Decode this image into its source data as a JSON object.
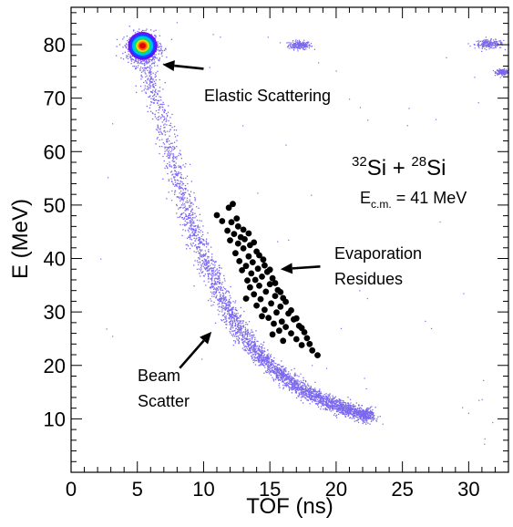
{
  "chart_data": {
    "type": "scatter",
    "xlabel": "TOF (ns)",
    "ylabel": "E (MeV)",
    "xlim": [
      0,
      33
    ],
    "ylim": [
      0,
      87
    ],
    "x_major_ticks": [
      0,
      5,
      10,
      15,
      20,
      25,
      30
    ],
    "y_major_ticks": [
      10,
      20,
      30,
      40,
      50,
      60,
      70,
      80
    ],
    "x_minor_step": 1,
    "y_minor_step": 2,
    "grid": false,
    "reaction": {
      "sup_a": "32",
      "element_a": "Si",
      "plus": " + ",
      "sup_b": "28",
      "element_b": "Si"
    },
    "energy_label": {
      "symbol": "E",
      "subscript": "c.m.",
      "value": " = 41 MeV"
    },
    "annotations": [
      {
        "id": "elastic",
        "text": "Elastic Scattering",
        "arrow_from": [
          10.0,
          75.5
        ],
        "arrow_to": [
          6.9,
          76.3
        ]
      },
      {
        "id": "evap",
        "lines": [
          "Evaporation",
          "Residues"
        ],
        "arrow_from": [
          18.8,
          38.5
        ],
        "arrow_to": [
          15.8,
          38.0
        ]
      },
      {
        "id": "beam",
        "lines": [
          "Beam",
          "Scatter"
        ],
        "arrow_from": [
          8.2,
          19.5
        ],
        "arrow_to": [
          10.6,
          26.3
        ]
      }
    ],
    "series": [
      {
        "id": "elastic-peak",
        "color_scale": [
          "#6a00ff",
          "#0050ff",
          "#00c0ff",
          "#00e070",
          "#ffd800",
          "#ff6000",
          "#e00000"
        ],
        "center": [
          5.4,
          79.8
        ]
      },
      {
        "id": "beam-scatter-band",
        "color": "#7b68ee",
        "curve": [
          [
            5.3,
            79
          ],
          [
            6.0,
            73
          ],
          [
            7.0,
            64
          ],
          [
            8.0,
            55
          ],
          [
            9.0,
            47
          ],
          [
            10.0,
            40
          ],
          [
            11.0,
            34.5
          ],
          [
            12.0,
            29.5
          ],
          [
            13.0,
            25.5
          ],
          [
            14.0,
            22.5
          ],
          [
            15.0,
            20
          ],
          [
            16.0,
            18
          ],
          [
            17.0,
            16.2
          ],
          [
            18.0,
            14.8
          ],
          [
            19.0,
            13.6
          ],
          [
            20.0,
            12.5
          ],
          [
            21.0,
            11.6
          ],
          [
            22.0,
            11
          ],
          [
            22.5,
            10.8
          ]
        ]
      },
      {
        "id": "evaporation-residues",
        "color": "#000000",
        "points": [
          [
            11.0,
            48.1
          ],
          [
            11.4,
            47.0
          ],
          [
            11.8,
            45.2
          ],
          [
            11.9,
            49.5
          ],
          [
            12.1,
            46.8
          ],
          [
            12.0,
            43.4
          ],
          [
            12.3,
            44.6
          ],
          [
            12.4,
            41.0
          ],
          [
            12.5,
            47.5
          ],
          [
            12.6,
            42.8
          ],
          [
            12.7,
            39.5
          ],
          [
            12.8,
            44.0
          ],
          [
            12.9,
            37.8
          ],
          [
            13.0,
            41.9
          ],
          [
            13.1,
            43.6
          ],
          [
            13.2,
            38.6
          ],
          [
            13.3,
            35.9
          ],
          [
            13.4,
            40.4
          ],
          [
            13.5,
            42.5
          ],
          [
            13.5,
            34.6
          ],
          [
            13.6,
            37.2
          ],
          [
            13.7,
            39.3
          ],
          [
            13.8,
            33.3
          ],
          [
            13.9,
            36.0
          ],
          [
            14.0,
            41.3
          ],
          [
            14.0,
            31.2
          ],
          [
            14.1,
            38.1
          ],
          [
            14.2,
            34.9
          ],
          [
            14.3,
            32.4
          ],
          [
            14.4,
            36.6
          ],
          [
            14.5,
            39.8
          ],
          [
            14.6,
            30.4
          ],
          [
            14.7,
            33.8
          ],
          [
            14.8,
            37.5
          ],
          [
            14.9,
            28.9
          ],
          [
            15.0,
            35.2
          ],
          [
            15.1,
            31.6
          ],
          [
            15.2,
            36.3
          ],
          [
            15.3,
            27.8
          ],
          [
            15.4,
            33.0
          ],
          [
            15.5,
            29.9
          ],
          [
            15.6,
            34.1
          ],
          [
            15.7,
            26.5
          ],
          [
            15.8,
            31.0
          ],
          [
            15.9,
            28.2
          ],
          [
            16.0,
            32.6
          ],
          [
            16.2,
            27.2
          ],
          [
            16.4,
            29.7
          ],
          [
            16.6,
            26.0
          ],
          [
            16.8,
            28.6
          ],
          [
            17.0,
            24.9
          ],
          [
            17.2,
            27.4
          ],
          [
            17.4,
            23.8
          ],
          [
            17.6,
            26.2
          ],
          [
            17.8,
            25.1
          ],
          [
            18.0,
            24.0
          ],
          [
            18.2,
            22.8
          ],
          [
            18.6,
            21.9
          ],
          [
            12.2,
            50.2
          ],
          [
            12.6,
            46.0
          ],
          [
            13.0,
            45.4
          ],
          [
            13.4,
            44.7
          ],
          [
            13.8,
            43.0
          ],
          [
            14.2,
            40.6
          ],
          [
            14.6,
            38.7
          ],
          [
            15.0,
            37.9
          ],
          [
            15.4,
            35.4
          ],
          [
            15.8,
            33.7
          ],
          [
            16.2,
            31.9
          ],
          [
            16.6,
            30.3
          ],
          [
            17.0,
            28.8
          ],
          [
            17.4,
            27.0
          ],
          [
            14.4,
            29.2
          ],
          [
            13.2,
            32.5
          ],
          [
            15.2,
            25.8
          ],
          [
            16.0,
            24.6
          ]
        ]
      },
      {
        "id": "background-clusters",
        "color": "#7b68ee",
        "clusters": [
          {
            "center": [
              17.2,
              80.0
            ],
            "spread": [
              0.7,
              0.8
            ]
          },
          {
            "center": [
              31.5,
              80.2
            ],
            "spread": [
              0.9,
              0.8
            ]
          },
          {
            "center": [
              32.5,
              75.0
            ],
            "spread": [
              0.4,
              0.5
            ]
          }
        ]
      }
    ]
  }
}
